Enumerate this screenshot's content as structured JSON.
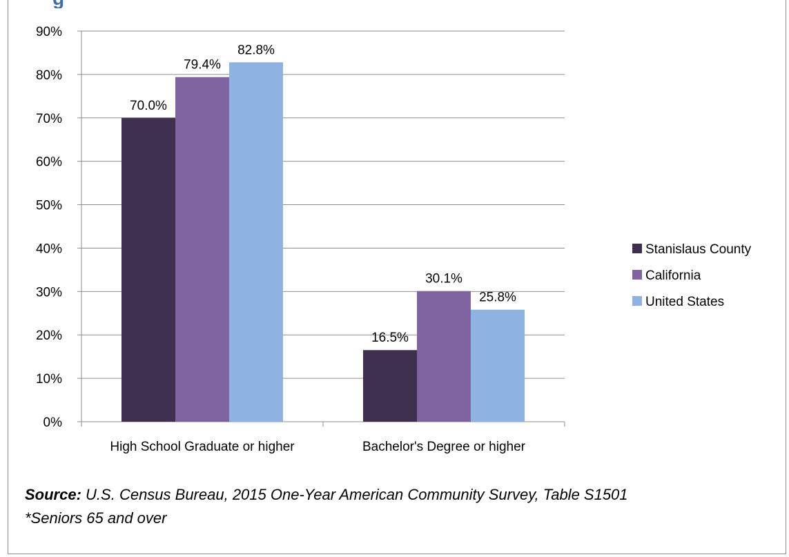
{
  "clipped_title_fragment": "g",
  "chart_data": {
    "type": "bar",
    "categories": [
      "High School Graduate or higher",
      "Bachelor's Degree or higher"
    ],
    "series": [
      {
        "name": "Stanislaus County",
        "values": [
          70.0,
          16.5
        ],
        "labels": [
          "70.0%",
          "16.5%"
        ],
        "color": "#40304f"
      },
      {
        "name": "California",
        "values": [
          79.4,
          30.1
        ],
        "labels": [
          "79.4%",
          "30.1%"
        ],
        "color": "#8063a1"
      },
      {
        "name": "United States",
        "values": [
          82.8,
          25.8
        ],
        "labels": [
          "82.8%",
          "25.8%"
        ],
        "color": "#8eb3e3"
      }
    ],
    "y_ticks": [
      "0%",
      "10%",
      "20%",
      "30%",
      "40%",
      "50%",
      "60%",
      "70%",
      "80%",
      "90%"
    ],
    "ylim": [
      0,
      90
    ],
    "grid": true,
    "legend_position": "right"
  },
  "footer": {
    "source_label": "Source:",
    "source_text": "U.S. Census Bureau, 2015 One-Year American Community Survey, Table S1501",
    "note": "*Seniors 65 and over"
  }
}
